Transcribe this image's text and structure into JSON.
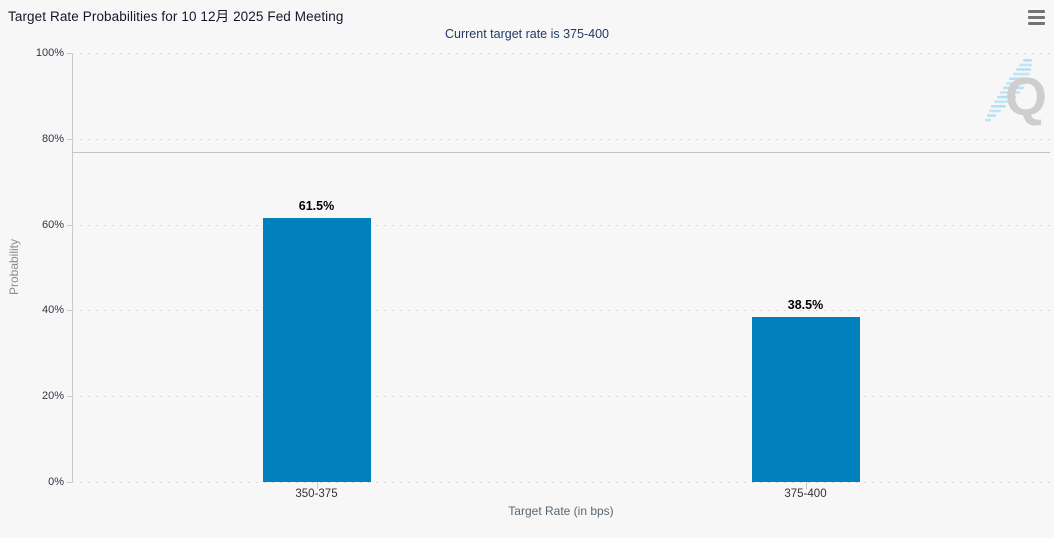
{
  "header": {
    "title": "Target Rate Probabilities for 10 12月 2025 Fed Meeting",
    "subtitle": "Current target rate is 375-400"
  },
  "chart_data": {
    "type": "bar",
    "title": "Target Rate Probabilities for 10 12月 2025 Fed Meeting",
    "subtitle": "Current target rate is 375-400",
    "categories": [
      "350-375",
      "375-400"
    ],
    "values": [
      61.5,
      38.5
    ],
    "value_labels": [
      "61.5%",
      "38.5%"
    ],
    "xlabel": "Target Rate (in bps)",
    "ylabel": "Probability",
    "ylim": [
      0,
      100
    ],
    "ytick_step": 20,
    "ytick_labels": [
      "0%",
      "20%",
      "40%",
      "60%",
      "80%",
      "100%"
    ],
    "grid": "dotted-horizontal",
    "legend": "none",
    "reference_line_value": 77,
    "bar_color": "#0081bd",
    "watermark_letter": "Q"
  },
  "icons": {
    "menu": "hamburger-menu-icon",
    "watermark": "quikstrike-q-watermark"
  },
  "colors": {
    "background": "#f7f7f7",
    "bar": "#0081bd",
    "title_text": "#15152e",
    "subtitle_text": "#223a66",
    "tick_text": "#2e3744",
    "axis_title_text": "#8c8c8c",
    "gridline": "#d9d9d9",
    "axis_line": "#c9c9c9",
    "reference_line": "#c3c3c3",
    "menu_icon": "#747474",
    "watermark_q": "#c8c8c8",
    "watermark_dashes": "#aadcf4"
  }
}
